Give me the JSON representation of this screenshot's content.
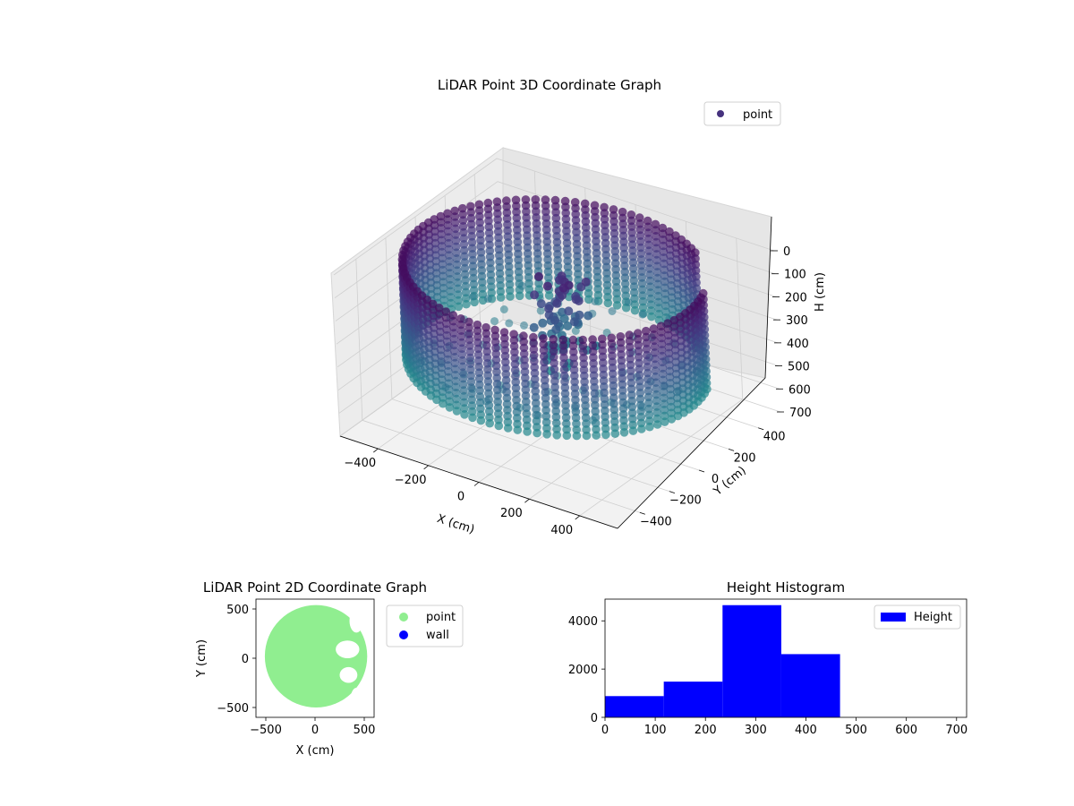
{
  "chart_data": [
    {
      "type": "scatter",
      "projection": "3d",
      "title": "LiDAR Point 3D Coordinate Graph",
      "xlabel": "X (cm)",
      "ylabel": "Y (cm)",
      "zlabel": "H (cm)",
      "xticks": [
        -400,
        -200,
        0,
        200,
        400
      ],
      "yticks": [
        -400,
        -200,
        0,
        200,
        400
      ],
      "zticks": [
        0,
        100,
        200,
        300,
        400,
        500,
        600,
        700
      ],
      "xlim": [
        -550,
        550
      ],
      "ylim": [
        -550,
        550
      ],
      "zlim": [
        700,
        0
      ],
      "z_axis_inverted": true,
      "grid": true,
      "legend": {
        "position": "upper-right",
        "entries": [
          "point"
        ]
      },
      "colormap": "viridis (by height)",
      "series": [
        {
          "name": "point",
          "color": "#46327e",
          "structure": {
            "wall_ring": {
              "radius": 520,
              "h_top": 30,
              "h_bottom": 470,
              "gap_angle_deg": [
                20,
                50
              ]
            },
            "floor_disc": {
              "radius": 500,
              "h": 380
            },
            "object_cluster": {
              "x_range": [
                -80,
                60
              ],
              "y_range": [
                -40,
                180
              ],
              "h_range": [
                80,
                470
              ]
            }
          }
        }
      ]
    },
    {
      "type": "scatter",
      "title": "LiDAR Point 2D Coordinate Graph",
      "xlabel": "X (cm)",
      "ylabel": "Y (cm)",
      "xticks": [
        -500,
        0,
        500
      ],
      "yticks": [
        -500,
        0,
        500
      ],
      "xlim": [
        -600,
        600
      ],
      "ylim": [
        -600,
        600
      ],
      "legend": {
        "position": "outside-right",
        "entries": [
          "point",
          "wall"
        ]
      },
      "series": [
        {
          "name": "point",
          "color": "#90ee90",
          "shape": {
            "center": [
              10,
              20
            ],
            "radius": 520,
            "notches_on_right": true
          }
        },
        {
          "name": "wall",
          "color": "#0000ff",
          "points": []
        }
      ]
    },
    {
      "type": "bar",
      "subtype": "histogram",
      "title": "Height Histogram",
      "xlabel": "",
      "ylabel": "",
      "xticks": [
        0,
        100,
        200,
        300,
        400,
        500,
        600,
        700
      ],
      "yticks": [
        0,
        2000,
        4000
      ],
      "xlim": [
        0,
        720
      ],
      "ylim": [
        0,
        4900
      ],
      "legend": {
        "position": "top-right",
        "entries": [
          "Height"
        ]
      },
      "series": [
        {
          "name": "Height",
          "color": "#0000ff",
          "bin_edges": [
            0,
            117,
            234,
            351,
            468,
            585,
            702
          ],
          "values": [
            880,
            1480,
            4650,
            2620,
            0,
            0
          ]
        }
      ]
    }
  ]
}
